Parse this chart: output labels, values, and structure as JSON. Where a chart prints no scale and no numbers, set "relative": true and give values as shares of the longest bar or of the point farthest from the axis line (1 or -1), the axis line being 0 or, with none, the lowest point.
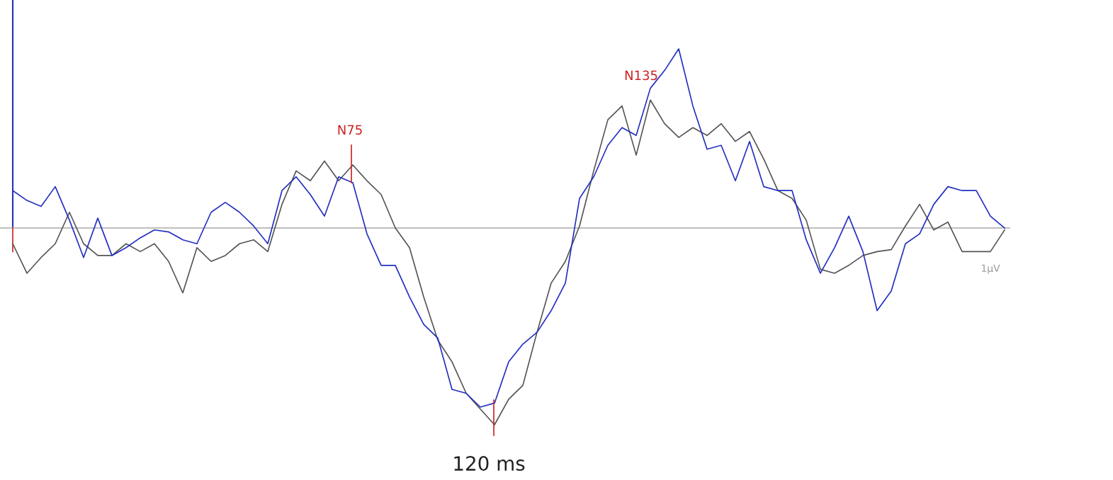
{
  "chart_data": {
    "type": "line",
    "relative": true,
    "categories": [
      null,
      null,
      null,
      null,
      null,
      null,
      null,
      null,
      null,
      null,
      null,
      null,
      null,
      null,
      null,
      null,
      null,
      null,
      null,
      null,
      null,
      null,
      null,
      null,
      null,
      null,
      null,
      null,
      null,
      null,
      null,
      null,
      null,
      null,
      null,
      null,
      null,
      null,
      null,
      null,
      null,
      null,
      null,
      null,
      null,
      null,
      null,
      null,
      null,
      null,
      null,
      null,
      null,
      null,
      null,
      null,
      null,
      null,
      null,
      null,
      null,
      null,
      null,
      null,
      null,
      null,
      null,
      null,
      null,
      null,
      null
    ],
    "series": [
      {
        "color": "#2230c0",
        "values": [
          0.19,
          0.14,
          0.11,
          0.21,
          0.04,
          -0.15,
          0.05,
          -0.14,
          -0.1,
          -0.05,
          -0.01,
          -0.02,
          -0.06,
          -0.08,
          0.08,
          0.13,
          0.08,
          0.01,
          -0.08,
          0.19,
          0.26,
          0.17,
          0.06,
          0.26,
          0.23,
          -0.03,
          -0.19,
          -0.19,
          -0.35,
          -0.49,
          -0.56,
          -0.82,
          -0.84,
          -0.91,
          -0.89,
          -0.68,
          -0.59,
          -0.53,
          -0.42,
          -0.28,
          0.15,
          0.26,
          0.42,
          0.51,
          0.47,
          0.71,
          0.8,
          0.91,
          0.62,
          0.4,
          0.42,
          0.24,
          0.44,
          0.21,
          0.19,
          0.19,
          -0.06,
          -0.23,
          -0.1,
          0.06,
          -0.12,
          -0.42,
          -0.32,
          -0.08,
          -0.03,
          0.12,
          0.21,
          0.19,
          0.19,
          0.06,
          0
        ]
      },
      {
        "color": "#555555",
        "values": [
          -0.08,
          -0.23,
          -0.15,
          -0.08,
          0.08,
          -0.08,
          -0.14,
          -0.14,
          -0.08,
          -0.12,
          -0.08,
          -0.17,
          -0.33,
          -0.1,
          -0.17,
          -0.14,
          -0.08,
          -0.06,
          -0.12,
          0.12,
          0.29,
          0.24,
          0.34,
          0.24,
          0.32,
          0.24,
          0.17,
          0,
          -0.1,
          -0.35,
          -0.57,
          -0.68,
          -0.84,
          -0.92,
          -1.0,
          -0.87,
          -0.8,
          -0.53,
          -0.28,
          -0.17,
          0.01,
          0.29,
          0.55,
          0.62,
          0.37,
          0.65,
          0.53,
          0.46,
          0.51,
          0.47,
          0.53,
          0.44,
          0.49,
          0.35,
          0.19,
          0.15,
          0.04,
          -0.21,
          -0.23,
          -0.19,
          -0.14,
          -0.12,
          -0.11,
          0.01,
          0.12,
          -0.01,
          0.03,
          -0.12,
          -0.12,
          -0.12,
          -0.01
        ]
      }
    ],
    "annotations": [
      "N75",
      "N135",
      "120 ms",
      "1µV"
    ],
    "line_style": "solid",
    "marker": "none",
    "legend": false
  }
}
